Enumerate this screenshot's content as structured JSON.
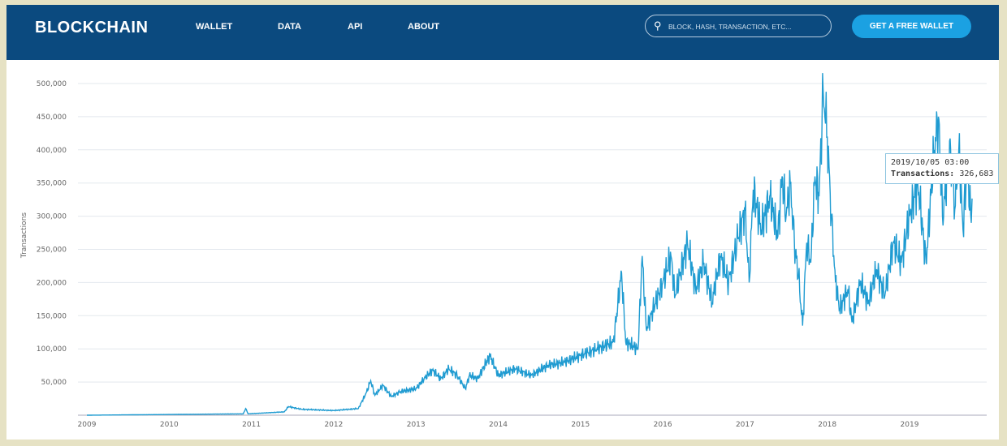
{
  "header": {
    "logo": "BLOCKCHAIN",
    "nav": [
      "WALLET",
      "DATA",
      "API",
      "ABOUT"
    ],
    "search_placeholder": "BLOCK, HASH, TRANSACTION, ETC...",
    "cta": "GET A FREE WALLET"
  },
  "colors": {
    "nav": "#0b4a7f",
    "accent": "#1ba1e2",
    "line": "#1f9bd1"
  },
  "tooltip": {
    "date": "2019/10/05 03:00",
    "label": "Transactions:",
    "value": "326,683"
  },
  "chart_data": {
    "type": "line",
    "title": "",
    "xlabel": "",
    "ylabel": "Transactions",
    "xlim": [
      2009,
      2019.9
    ],
    "ylim": [
      0,
      500000
    ],
    "x_ticks": [
      "2009",
      "2010",
      "2011",
      "2012",
      "2013",
      "2014",
      "2015",
      "2016",
      "2017",
      "2018",
      "2019"
    ],
    "y_ticks": [
      "50,000",
      "100,000",
      "150,000",
      "200,000",
      "250,000",
      "300,000",
      "350,000",
      "400,000",
      "450,000",
      "500,000"
    ],
    "series": [
      {
        "name": "Transactions",
        "points": [
          [
            2009.0,
            0
          ],
          [
            2010.9,
            2000
          ],
          [
            2010.93,
            10000
          ],
          [
            2010.96,
            2000
          ],
          [
            2011.4,
            5000
          ],
          [
            2011.45,
            13000
          ],
          [
            2011.6,
            9000
          ],
          [
            2012.0,
            7000
          ],
          [
            2012.3,
            10000
          ],
          [
            2012.4,
            35000
          ],
          [
            2012.45,
            52000
          ],
          [
            2012.5,
            30000
          ],
          [
            2012.6,
            45000
          ],
          [
            2012.7,
            28000
          ],
          [
            2012.8,
            35000
          ],
          [
            2013.0,
            40000
          ],
          [
            2013.1,
            55000
          ],
          [
            2013.2,
            68000
          ],
          [
            2013.3,
            55000
          ],
          [
            2013.4,
            70000
          ],
          [
            2013.5,
            60000
          ],
          [
            2013.6,
            40000
          ],
          [
            2013.65,
            60000
          ],
          [
            2013.75,
            55000
          ],
          [
            2013.9,
            90000
          ],
          [
            2014.0,
            60000
          ],
          [
            2014.2,
            70000
          ],
          [
            2014.4,
            60000
          ],
          [
            2014.6,
            75000
          ],
          [
            2014.8,
            80000
          ],
          [
            2015.0,
            90000
          ],
          [
            2015.2,
            100000
          ],
          [
            2015.4,
            110000
          ],
          [
            2015.5,
            215000
          ],
          [
            2015.55,
            110000
          ],
          [
            2015.7,
            100000
          ],
          [
            2015.75,
            240000
          ],
          [
            2015.8,
            130000
          ],
          [
            2016.0,
            200000
          ],
          [
            2016.1,
            240000
          ],
          [
            2016.15,
            180000
          ],
          [
            2016.3,
            260000
          ],
          [
            2016.4,
            190000
          ],
          [
            2016.5,
            230000
          ],
          [
            2016.6,
            170000
          ],
          [
            2016.7,
            240000
          ],
          [
            2016.8,
            200000
          ],
          [
            2016.9,
            260000
          ],
          [
            2017.0,
            310000
          ],
          [
            2017.05,
            200000
          ],
          [
            2017.1,
            340000
          ],
          [
            2017.2,
            280000
          ],
          [
            2017.3,
            330000
          ],
          [
            2017.4,
            270000
          ],
          [
            2017.45,
            360000
          ],
          [
            2017.5,
            300000
          ],
          [
            2017.55,
            350000
          ],
          [
            2017.6,
            260000
          ],
          [
            2017.65,
            210000
          ],
          [
            2017.7,
            135000
          ],
          [
            2017.75,
            260000
          ],
          [
            2017.8,
            230000
          ],
          [
            2017.85,
            360000
          ],
          [
            2017.9,
            330000
          ],
          [
            2017.95,
            490000
          ],
          [
            2018.0,
            420000
          ],
          [
            2018.05,
            300000
          ],
          [
            2018.1,
            200000
          ],
          [
            2018.15,
            160000
          ],
          [
            2018.25,
            190000
          ],
          [
            2018.3,
            140000
          ],
          [
            2018.4,
            200000
          ],
          [
            2018.5,
            170000
          ],
          [
            2018.6,
            220000
          ],
          [
            2018.7,
            180000
          ],
          [
            2018.8,
            260000
          ],
          [
            2018.9,
            230000
          ],
          [
            2019.0,
            300000
          ],
          [
            2019.1,
            350000
          ],
          [
            2019.2,
            230000
          ],
          [
            2019.3,
            400000
          ],
          [
            2019.35,
            450000
          ],
          [
            2019.4,
            300000
          ],
          [
            2019.5,
            400000
          ],
          [
            2019.55,
            310000
          ],
          [
            2019.6,
            405000
          ],
          [
            2019.65,
            280000
          ],
          [
            2019.7,
            380000
          ],
          [
            2019.75,
            290000
          ],
          [
            2019.76,
            326683
          ]
        ]
      }
    ]
  }
}
